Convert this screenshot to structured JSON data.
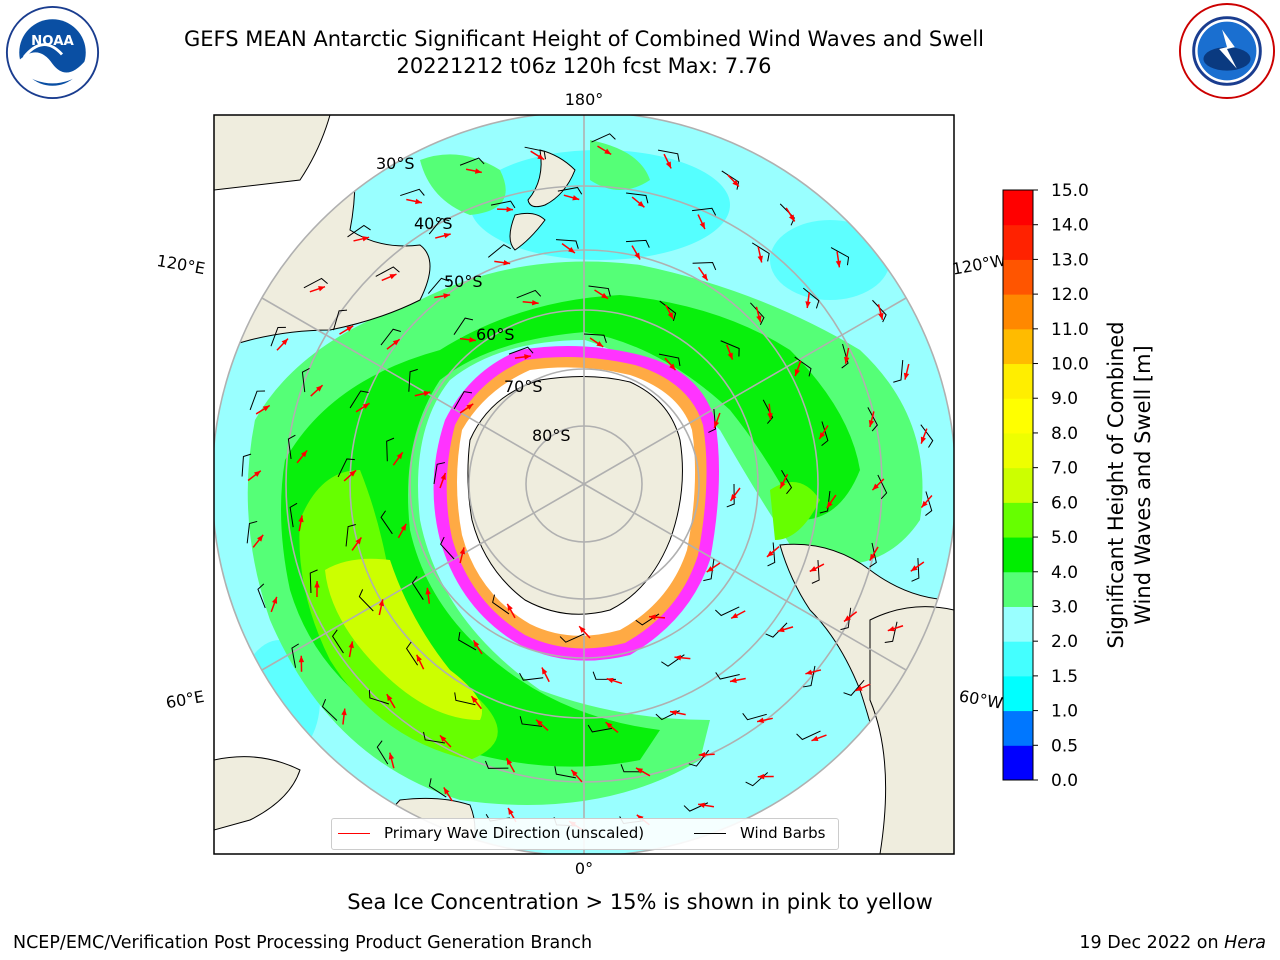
{
  "title": {
    "line1": "GEFS MEAN Antarctic Significant Height of Combined Wind Waves and Swell",
    "line2": "20221212 t06z 120h fcst   Max: 7.76"
  },
  "map": {
    "projection": "south-polar-stereographic",
    "lon_labels": {
      "top": "180°",
      "bottom": "0°",
      "left_upper": "120°E",
      "left_lower": "60°E",
      "right_upper": "120°W",
      "right_lower": "60°W"
    },
    "lat_labels": [
      "30°S",
      "40°S",
      "50°S",
      "60°S",
      "70°S",
      "80°S"
    ],
    "land_color": "#efedde",
    "ice_note_colors": [
      "#ff33ff",
      "#ffaa44",
      "#ffffff"
    ]
  },
  "legend": {
    "primary_wave": "Primary Wave Direction (unscaled)",
    "wind_barbs": "Wind Barbs",
    "wave_color": "#ff0000",
    "barb_color": "#000000"
  },
  "colorbar": {
    "label_line1": "Significant Height of Combined",
    "label_line2": "Wind Waves and Swell [m]",
    "ticks": [
      "0.0",
      "0.5",
      "1.0",
      "1.5",
      "2.0",
      "3.0",
      "4.0",
      "5.0",
      "6.0",
      "7.0",
      "8.0",
      "9.0",
      "10.0",
      "11.0",
      "12.0",
      "13.0",
      "14.0",
      "15.0"
    ],
    "colors": [
      "#0000ff",
      "#0077ff",
      "#00ffff",
      "#44ffff",
      "#99ffff",
      "#55ff77",
      "#00ee00",
      "#66ff00",
      "#ccff00",
      "#eeff00",
      "#ffff00",
      "#ffee00",
      "#ffbb00",
      "#ff8800",
      "#ff5500",
      "#ff2200",
      "#ff0000"
    ]
  },
  "caption": "Sea Ice Concentration > 15% is shown in pink to yellow",
  "footer": {
    "left": "NCEP/EMC/Verification Post Processing Product Generation Branch",
    "right_date": "19 Dec 2022 on ",
    "right_host": "Hera"
  }
}
